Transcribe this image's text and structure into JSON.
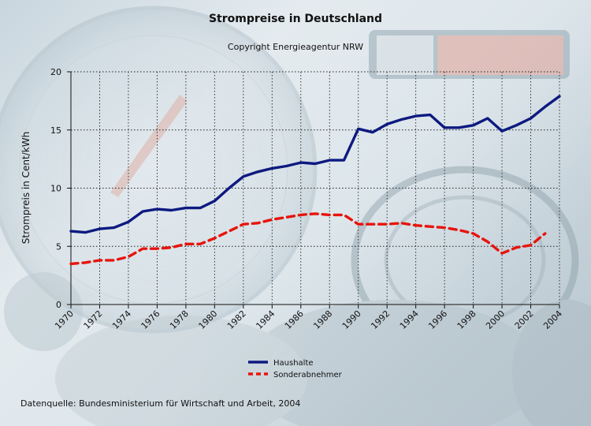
{
  "header": {
    "title": "Strompreise in Deutschland",
    "subtitle": "Copyright Energieagentur NRW"
  },
  "footer": {
    "source": "Datenquelle: Bundesministerium für Wirtschaft und Arbeit, 2004"
  },
  "chart_data": {
    "type": "line",
    "title": "Strompreise in Deutschland",
    "subtitle": "Copyright Energieagentur NRW",
    "xlabel": "",
    "ylabel": "Strompreis in Cent/kWh",
    "xlim": [
      1970,
      2004
    ],
    "ylim": [
      0,
      20
    ],
    "x_ticks": [
      1970,
      1972,
      1974,
      1976,
      1978,
      1980,
      1982,
      1984,
      1986,
      1988,
      1990,
      1992,
      1994,
      1996,
      1998,
      2000,
      2002,
      2004
    ],
    "y_ticks": [
      0,
      5,
      10,
      15,
      20
    ],
    "grid": "dotted",
    "legend_position": "bottom-center",
    "series": [
      {
        "name": "Haushalte",
        "color": "#0d1a80",
        "style": "solid",
        "points": [
          [
            1970,
            6.3
          ],
          [
            1971,
            6.2
          ],
          [
            1972,
            6.5
          ],
          [
            1973,
            6.6
          ],
          [
            1974,
            7.1
          ],
          [
            1975,
            8.0
          ],
          [
            1976,
            8.2
          ],
          [
            1977,
            8.1
          ],
          [
            1978,
            8.3
          ],
          [
            1979,
            8.3
          ],
          [
            1980,
            8.9
          ],
          [
            1981,
            10.0
          ],
          [
            1982,
            11.0
          ],
          [
            1983,
            11.4
          ],
          [
            1984,
            11.7
          ],
          [
            1985,
            11.9
          ],
          [
            1986,
            12.2
          ],
          [
            1987,
            12.1
          ],
          [
            1988,
            12.4
          ],
          [
            1989,
            12.4
          ],
          [
            1990,
            15.1
          ],
          [
            1991,
            14.8
          ],
          [
            1992,
            15.5
          ],
          [
            1993,
            15.9
          ],
          [
            1994,
            16.2
          ],
          [
            1995,
            16.3
          ],
          [
            1996,
            15.2
          ],
          [
            1997,
            15.2
          ],
          [
            1998,
            15.4
          ],
          [
            1999,
            16.0
          ],
          [
            2000,
            14.9
          ],
          [
            2001,
            15.4
          ],
          [
            2002,
            16.0
          ],
          [
            2003,
            17.0
          ],
          [
            2004,
            17.9
          ]
        ]
      },
      {
        "name": "Sonderabnehmer",
        "color": "#e8140c",
        "style": "dashed",
        "points": [
          [
            1970,
            3.5
          ],
          [
            1971,
            3.6
          ],
          [
            1972,
            3.8
          ],
          [
            1973,
            3.8
          ],
          [
            1974,
            4.1
          ],
          [
            1975,
            4.8
          ],
          [
            1976,
            4.8
          ],
          [
            1977,
            4.9
          ],
          [
            1978,
            5.2
          ],
          [
            1979,
            5.2
          ],
          [
            1980,
            5.7
          ],
          [
            1981,
            6.3
          ],
          [
            1982,
            6.9
          ],
          [
            1983,
            7.0
          ],
          [
            1984,
            7.3
          ],
          [
            1985,
            7.5
          ],
          [
            1986,
            7.7
          ],
          [
            1987,
            7.8
          ],
          [
            1988,
            7.7
          ],
          [
            1989,
            7.7
          ],
          [
            1990,
            6.9
          ],
          [
            1991,
            6.9
          ],
          [
            1992,
            6.9
          ],
          [
            1993,
            7.0
          ],
          [
            1994,
            6.8
          ],
          [
            1995,
            6.7
          ],
          [
            1996,
            6.6
          ],
          [
            1997,
            6.4
          ],
          [
            1998,
            6.1
          ],
          [
            1999,
            5.4
          ],
          [
            2000,
            4.4
          ],
          [
            2001,
            4.9
          ],
          [
            2002,
            5.1
          ],
          [
            2003,
            6.1
          ]
        ]
      }
    ]
  }
}
